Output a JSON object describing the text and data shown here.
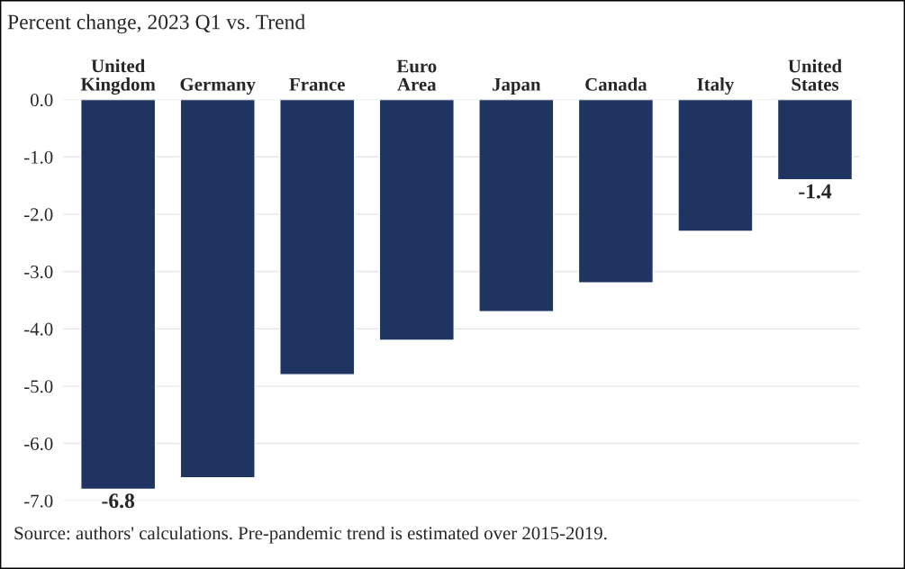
{
  "chart_data": {
    "type": "bar",
    "title": "Percent change, 2023 Q1 vs. Trend",
    "categories": [
      "United\nKingdom",
      "Germany",
      "France",
      "Euro\nArea",
      "Japan",
      "Canada",
      "Italy",
      "United\nStates"
    ],
    "values": [
      -6.8,
      -6.6,
      -4.8,
      -4.2,
      -3.7,
      -3.2,
      -2.3,
      -1.4
    ],
    "value_labels": [
      "-6.8",
      null,
      null,
      null,
      null,
      null,
      null,
      "-1.4"
    ],
    "color": "#1f3461",
    "ylim": [
      -7,
      0
    ],
    "yticks": [
      {
        "value": 0,
        "label": "0.0"
      },
      {
        "value": -1,
        "label": "-1.0"
      },
      {
        "value": -2,
        "label": "-2.0"
      },
      {
        "value": -3,
        "label": "-3.0"
      },
      {
        "value": -4,
        "label": "-4.0"
      },
      {
        "value": -5,
        "label": "-5.0"
      },
      {
        "value": -6,
        "label": "-6.0"
      },
      {
        "value": -7,
        "label": "-7.0"
      }
    ],
    "grid": "y",
    "annotations": [
      "Source: authors' calculations. Pre-pandemic trend is estimated over 2015-2019."
    ]
  }
}
